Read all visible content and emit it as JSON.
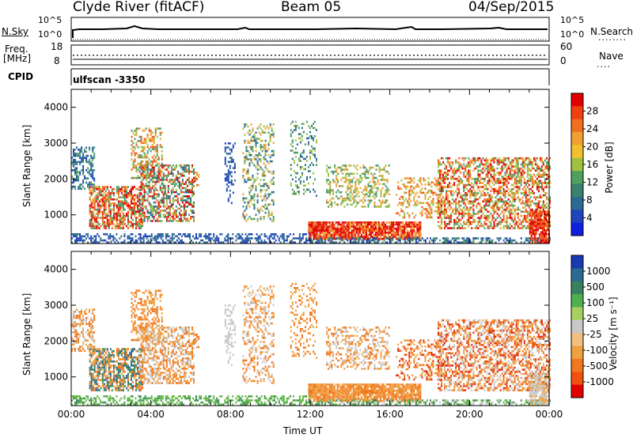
{
  "header": {
    "station": "Clyde River (fitACF)",
    "beam": "Beam 05",
    "date": "04/Sep/2015"
  },
  "top_panels": {
    "nsky_label": "N.Sky",
    "nsky_ticks": [
      "10^5",
      "10^0"
    ],
    "nsearch_label": "N.Search",
    "nsearch_ticks": [
      "10^5",
      "10^0"
    ],
    "freq_label": "Freq.",
    "freq_unit": "[MHz]",
    "freq_ticks": [
      "18",
      "8"
    ],
    "nave_label": "Nave",
    "nave_ticks": [
      "60",
      "0"
    ],
    "cpid_label": "CPID",
    "cpid_value": "ulfscan -3350"
  },
  "chart_data": [
    {
      "type": "heatmap",
      "name": "power-panel",
      "ylabel": "Slant Range [km]",
      "xlabel": "",
      "yticks": [
        "4000",
        "3000",
        "2000",
        "1000"
      ],
      "ylim": [
        200,
        4500
      ],
      "xlim": [
        0,
        24
      ],
      "colorbar": {
        "label": "Power [dB]",
        "ticks": [
          "28",
          "24",
          "20",
          "16",
          "12",
          "8",
          "4"
        ],
        "colors": [
          "#e00000",
          "#f04010",
          "#f07020",
          "#f0a030",
          "#f0c030",
          "#a0c040",
          "#50a060",
          "#3c8070",
          "#2c6a90",
          "#1f44bb",
          "#1020e0"
        ]
      },
      "colormap": [
        "#e00000",
        "#f05a1a",
        "#f0a030",
        "#a0c040",
        "#4a9a6a",
        "#2c6a90",
        "#1f44bb"
      ]
    },
    {
      "type": "heatmap",
      "name": "velocity-panel",
      "ylabel": "Slant Range [km]",
      "xlabel": "Time UT",
      "yticks": [
        "4000",
        "3000",
        "2000",
        "1000"
      ],
      "xticks": [
        "00:00",
        "04:00",
        "08:00",
        "12:00",
        "16:00",
        "20:00",
        "00:00"
      ],
      "ylim": [
        200,
        4500
      ],
      "xlim": [
        0,
        24
      ],
      "colorbar": {
        "label": "Velocity [m s⁻¹]",
        "ticks": [
          "1000",
          "500",
          "100",
          "25",
          "-25",
          "-100",
          "-500",
          "-1000"
        ],
        "colors": [
          "#1a3ab0",
          "#2c6a90",
          "#3a8060",
          "#50b050",
          "#a8d060",
          "#c8c8c8",
          "#f0c080",
          "#f0a040",
          "#f07820",
          "#f05010",
          "#e00000"
        ]
      },
      "colormap": [
        "#2c6a90",
        "#3c8a5a",
        "#60b840",
        "#c8c8c8",
        "#f0a040",
        "#f07820",
        "#e03010"
      ]
    }
  ]
}
